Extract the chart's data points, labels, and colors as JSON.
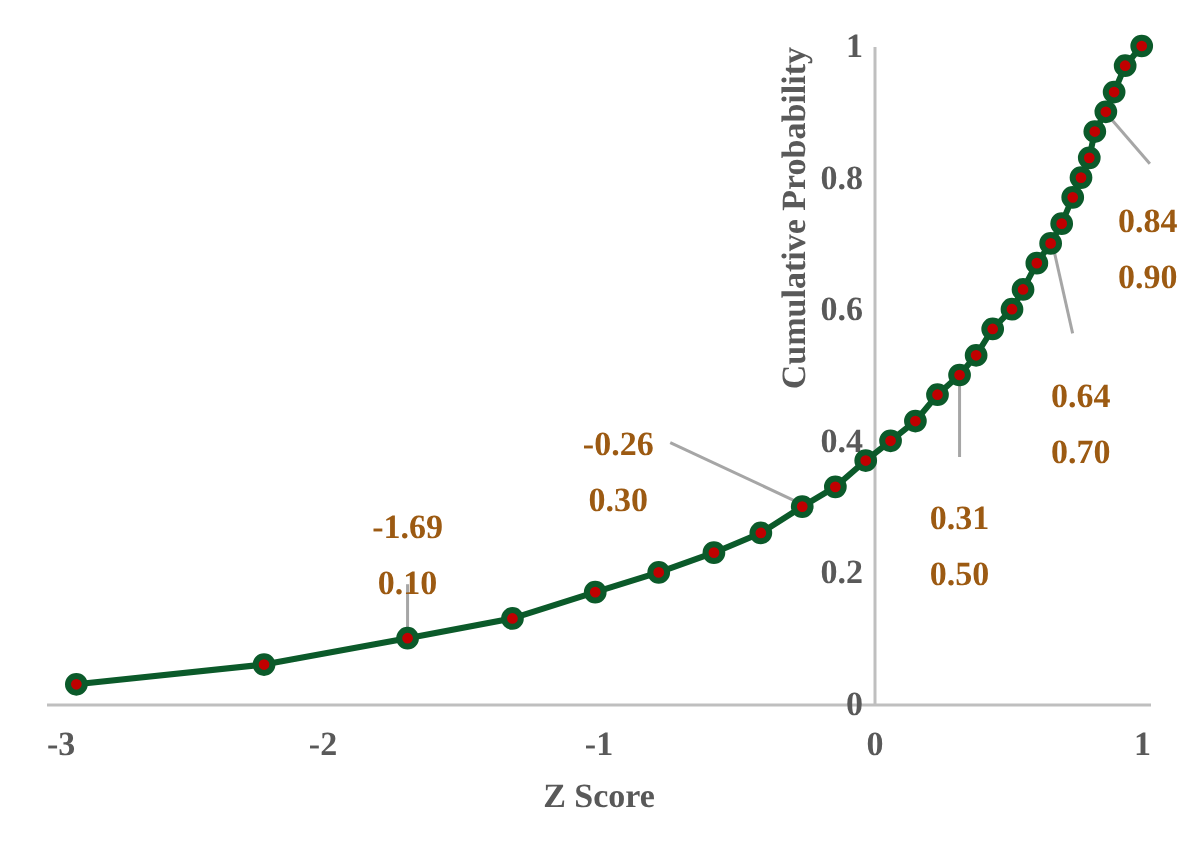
{
  "chart_data": {
    "type": "line",
    "xlabel": "Z Score",
    "ylabel": "Cumulative Probability",
    "x": [
      -2.89,
      -2.21,
      -1.69,
      -1.31,
      -1.01,
      -0.78,
      -0.58,
      -0.41,
      -0.26,
      -0.14,
      -0.03,
      0.06,
      0.15,
      0.23,
      0.31,
      0.37,
      0.43,
      0.5,
      0.54,
      0.59,
      0.64,
      0.68,
      0.72,
      0.75,
      0.78,
      0.8,
      0.84,
      0.87,
      0.91,
      0.97
    ],
    "series": [
      {
        "color": "#0b5a2a",
        "values": [
          0.03,
          0.06,
          0.1,
          0.13,
          0.17,
          0.2,
          0.23,
          0.26,
          0.3,
          0.33,
          0.37,
          0.4,
          0.43,
          0.47,
          0.5,
          0.53,
          0.57,
          0.6,
          0.63,
          0.67,
          0.7,
          0.73,
          0.77,
          0.8,
          0.83,
          0.87,
          0.9,
          0.93,
          0.97,
          1.0
        ]
      }
    ],
    "xlim": [
      -3,
      1
    ],
    "xticks": [
      -3,
      -2,
      -1,
      0,
      1
    ],
    "ylim": [
      0,
      1
    ],
    "yticks": [
      0,
      0.2,
      0.4,
      0.6,
      0.8,
      1
    ],
    "grid": false,
    "marker": "circle",
    "line_style": "solid",
    "annotations": [
      {
        "text": "-1.69\n0.10",
        "x": -1.69,
        "y": 0.1
      },
      {
        "text": "-0.26\n0.30",
        "x": -0.26,
        "y": 0.3
      },
      {
        "text": "0.31\n0.50",
        "x": 0.31,
        "y": 0.5
      },
      {
        "text": "0.64\n0.70",
        "x": 0.64,
        "y": 0.7
      },
      {
        "text": "0.84\n0.90",
        "x": 0.84,
        "y": 0.9
      }
    ]
  }
}
